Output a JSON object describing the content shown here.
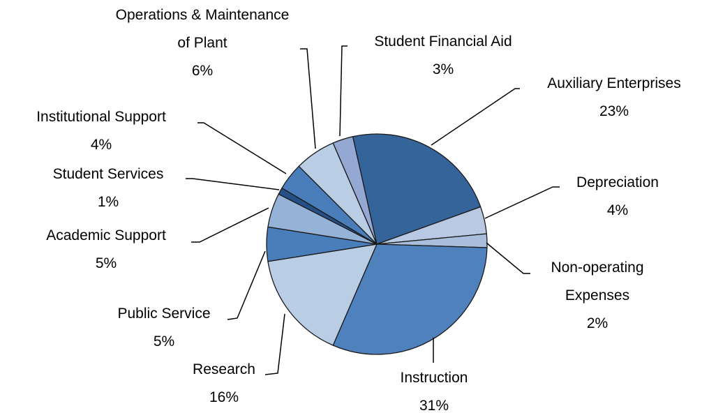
{
  "chart_data": {
    "type": "pie",
    "categories": [
      "Auxiliary Enterprises",
      "Depreciation",
      "Non-operating Expenses",
      "Instruction",
      "Research",
      "Public Service",
      "Academic Support",
      "Student Services",
      "Institutional Support",
      "Operations & Maintenance of Plant",
      "Student Financial Aid"
    ],
    "values": [
      23,
      4,
      2,
      31,
      16,
      5,
      5,
      1,
      4,
      6,
      3
    ],
    "value_labels": [
      "23%",
      "4%",
      "2%",
      "31%",
      "16%",
      "5%",
      "5%",
      "1%",
      "4%",
      "6%",
      "3%"
    ],
    "colors": [
      "#35649a",
      "#b9c9e3",
      "#a9bedd",
      "#4f81bd",
      "#b9cde5",
      "#4a7ebb",
      "#95b3d7",
      "#254f86",
      "#4a7ebb",
      "#b9cde5",
      "#95a8d4"
    ]
  }
}
